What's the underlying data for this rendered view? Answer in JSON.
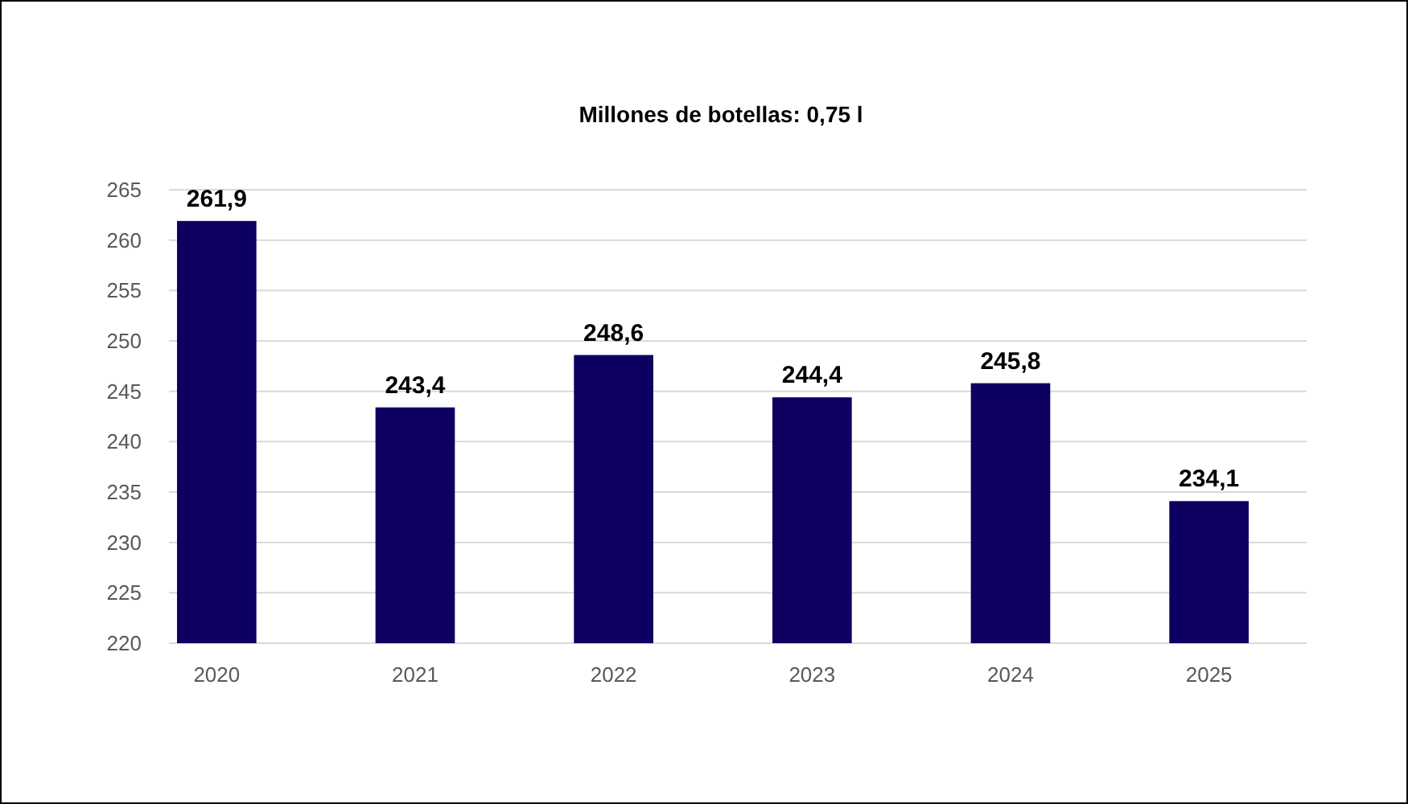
{
  "chart_data": {
    "type": "bar",
    "title": "Millones de botellas: 0,75 l",
    "categories": [
      "2020",
      "2021",
      "2022",
      "2023",
      "2024",
      "2025"
    ],
    "values": [
      261.9,
      243.4,
      248.6,
      244.4,
      245.8,
      234.1
    ],
    "value_labels": [
      "261,9",
      "243,4",
      "248,6",
      "244,4",
      "245,8",
      "234,1"
    ],
    "color": "#0d0061",
    "ylim": [
      220,
      265
    ],
    "yticks": [
      220,
      225,
      230,
      235,
      240,
      245,
      250,
      255,
      260,
      265
    ],
    "grid": "y"
  }
}
